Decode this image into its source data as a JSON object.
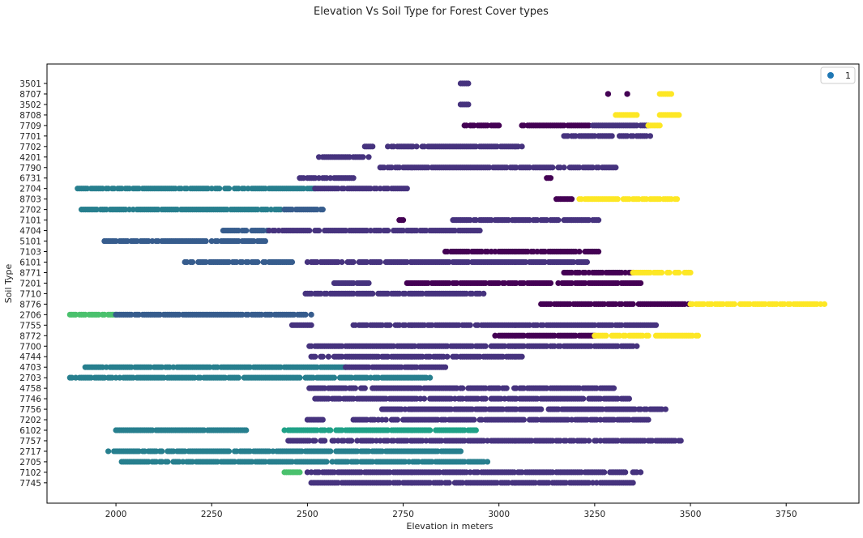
{
  "chart_data": {
    "type": "scatter",
    "title": "Elevation Vs Soil Type for Forest Cover types",
    "xlabel": "Elevation in meters",
    "ylabel": "Soil Type",
    "xlim": [
      1820,
      3940
    ],
    "x_ticks": [
      2000,
      2250,
      2500,
      2750,
      3000,
      3250,
      3500,
      3750
    ],
    "y_categories_top_to_bottom": [
      "3501",
      "8707",
      "3502",
      "8708",
      "7709",
      "7701",
      "7702",
      "4201",
      "7790",
      "6731",
      "2704",
      "8703",
      "2702",
      "7101",
      "4704",
      "5101",
      "7103",
      "6101",
      "8771",
      "7201",
      "7710",
      "8776",
      "2706",
      "7755",
      "8772",
      "7700",
      "4744",
      "4703",
      "2703",
      "4758",
      "7746",
      "7756",
      "7202",
      "6102",
      "7757",
      "2717",
      "2705",
      "7102",
      "7745"
    ],
    "legend": {
      "entries": [
        "1"
      ],
      "placement": "upper-right"
    },
    "grid": false,
    "colors": {
      "class_1": "#440154",
      "class_2": "#46337e",
      "class_3": "#365c8d",
      "class_4": "#277f8e",
      "class_5": "#1fa187",
      "class_6": "#4ac16d",
      "class_7": "#fde725",
      "class_6_light": "#86d549",
      "legend_marker": "#1f77b4"
    },
    "rows": [
      {
        "soil": "3501",
        "segments": [
          {
            "from": 2900,
            "to": 2920,
            "class": 2
          }
        ]
      },
      {
        "soil": "8707",
        "segments": [
          {
            "from": 3285,
            "to": 3285,
            "class": 1
          },
          {
            "from": 3335,
            "to": 3335,
            "class": 1
          },
          {
            "from": 3420,
            "to": 3450,
            "class": 7
          }
        ]
      },
      {
        "soil": "3502",
        "segments": [
          {
            "from": 2900,
            "to": 2920,
            "class": 2
          }
        ]
      },
      {
        "soil": "8708",
        "segments": [
          {
            "from": 3305,
            "to": 3360,
            "class": 7
          },
          {
            "from": 3420,
            "to": 3470,
            "class": 7
          }
        ]
      },
      {
        "soil": "7709",
        "segments": [
          {
            "from": 2910,
            "to": 3000,
            "class": 1
          },
          {
            "from": 3060,
            "to": 3240,
            "class": 1
          },
          {
            "from": 3240,
            "to": 3390,
            "class": 2
          },
          {
            "from": 3390,
            "to": 3420,
            "class": 7
          }
        ]
      },
      {
        "soil": "7701",
        "segments": [
          {
            "from": 3170,
            "to": 3400,
            "class": 2
          }
        ]
      },
      {
        "soil": "7702",
        "segments": [
          {
            "from": 2650,
            "to": 2670,
            "class": 2
          },
          {
            "from": 2710,
            "to": 3060,
            "class": 2
          }
        ]
      },
      {
        "soil": "4201",
        "segments": [
          {
            "from": 2530,
            "to": 2660,
            "class": 2
          }
        ]
      },
      {
        "soil": "7790",
        "segments": [
          {
            "from": 2690,
            "to": 3310,
            "class": 2
          }
        ]
      },
      {
        "soil": "6731",
        "segments": [
          {
            "from": 2480,
            "to": 2620,
            "class": 2
          },
          {
            "from": 3125,
            "to": 3135,
            "class": 1
          }
        ]
      },
      {
        "soil": "2704",
        "segments": [
          {
            "from": 1900,
            "to": 2520,
            "class": 4
          },
          {
            "from": 2520,
            "to": 2760,
            "class": 2
          }
        ]
      },
      {
        "soil": "8703",
        "segments": [
          {
            "from": 3150,
            "to": 3190,
            "class": 1
          },
          {
            "from": 3210,
            "to": 3470,
            "class": 7
          }
        ]
      },
      {
        "soil": "2702",
        "segments": [
          {
            "from": 1910,
            "to": 2440,
            "class": 4
          },
          {
            "from": 2440,
            "to": 2540,
            "class": 3
          }
        ]
      },
      {
        "soil": "7101",
        "segments": [
          {
            "from": 2740,
            "to": 2750,
            "class": 1
          },
          {
            "from": 2880,
            "to": 3260,
            "class": 2
          }
        ]
      },
      {
        "soil": "4704",
        "segments": [
          {
            "from": 2280,
            "to": 2400,
            "class": 3
          },
          {
            "from": 2400,
            "to": 2950,
            "class": 2
          }
        ]
      },
      {
        "soil": "5101",
        "segments": [
          {
            "from": 1970,
            "to": 2390,
            "class": 3
          }
        ]
      },
      {
        "soil": "7103",
        "segments": [
          {
            "from": 2860,
            "to": 3260,
            "class": 1
          }
        ]
      },
      {
        "soil": "6101",
        "segments": [
          {
            "from": 2180,
            "to": 2460,
            "class": 3
          },
          {
            "from": 2500,
            "to": 3230,
            "class": 2
          }
        ]
      },
      {
        "soil": "8771",
        "segments": [
          {
            "from": 3170,
            "to": 3350,
            "class": 1
          },
          {
            "from": 3350,
            "to": 3500,
            "class": 7
          }
        ]
      },
      {
        "soil": "7201",
        "segments": [
          {
            "from": 2570,
            "to": 2660,
            "class": 2
          },
          {
            "from": 2760,
            "to": 3370,
            "class": 1
          }
        ]
      },
      {
        "soil": "7710",
        "segments": [
          {
            "from": 2490,
            "to": 2960,
            "class": 2
          }
        ]
      },
      {
        "soil": "8776",
        "segments": [
          {
            "from": 3110,
            "to": 3500,
            "class": 1
          },
          {
            "from": 3500,
            "to": 3850,
            "class": 7
          }
        ]
      },
      {
        "soil": "2706",
        "segments": [
          {
            "from": 1880,
            "to": 2000,
            "class": 6
          },
          {
            "from": 2000,
            "to": 2510,
            "class": 3
          }
        ]
      },
      {
        "soil": "7755",
        "segments": [
          {
            "from": 2460,
            "to": 2510,
            "class": 2
          },
          {
            "from": 2620,
            "to": 3410,
            "class": 2
          }
        ]
      },
      {
        "soil": "8772",
        "segments": [
          {
            "from": 2990,
            "to": 3250,
            "class": 1
          },
          {
            "from": 3250,
            "to": 3520,
            "class": 7
          }
        ]
      },
      {
        "soil": "7700",
        "segments": [
          {
            "from": 2500,
            "to": 3360,
            "class": 2
          }
        ]
      },
      {
        "soil": "4744",
        "segments": [
          {
            "from": 2510,
            "to": 3060,
            "class": 2
          }
        ]
      },
      {
        "soil": "4703",
        "segments": [
          {
            "from": 1920,
            "to": 2600,
            "class": 4
          },
          {
            "from": 2600,
            "to": 2860,
            "class": 2
          }
        ]
      },
      {
        "soil": "2703",
        "segments": [
          {
            "from": 1880,
            "to": 2820,
            "class": 4
          }
        ]
      },
      {
        "soil": "4758",
        "segments": [
          {
            "from": 2500,
            "to": 3300,
            "class": 2
          }
        ]
      },
      {
        "soil": "7746",
        "segments": [
          {
            "from": 2520,
            "to": 3340,
            "class": 2
          }
        ]
      },
      {
        "soil": "7756",
        "segments": [
          {
            "from": 2690,
            "to": 3440,
            "class": 2
          }
        ]
      },
      {
        "soil": "7202",
        "segments": [
          {
            "from": 2500,
            "to": 2540,
            "class": 2
          },
          {
            "from": 2620,
            "to": 3390,
            "class": 2
          }
        ]
      },
      {
        "soil": "6102",
        "segments": [
          {
            "from": 2000,
            "to": 2340,
            "class": 4
          },
          {
            "from": 2440,
            "to": 2940,
            "class": 5
          }
        ]
      },
      {
        "soil": "7757",
        "segments": [
          {
            "from": 2450,
            "to": 3480,
            "class": 2
          }
        ]
      },
      {
        "soil": "2717",
        "segments": [
          {
            "from": 1980,
            "to": 2900,
            "class": 4
          }
        ]
      },
      {
        "soil": "2705",
        "segments": [
          {
            "from": 2010,
            "to": 2970,
            "class": 4
          }
        ]
      },
      {
        "soil": "7102",
        "segments": [
          {
            "from": 2440,
            "to": 2480,
            "class": 6
          },
          {
            "from": 2500,
            "to": 3370,
            "class": 2
          }
        ]
      },
      {
        "soil": "7745",
        "segments": [
          {
            "from": 2510,
            "to": 3350,
            "class": 2
          }
        ]
      }
    ]
  }
}
